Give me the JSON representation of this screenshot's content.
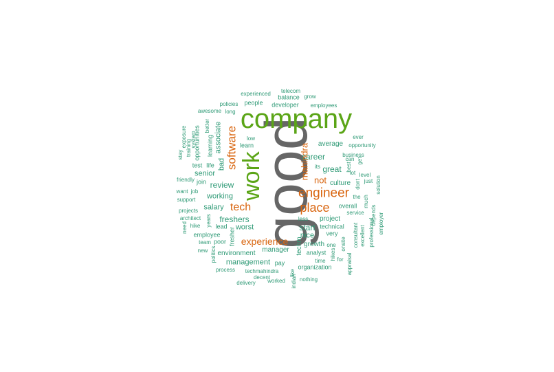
{
  "colors": {
    "gray": "#666666",
    "green": "#5ba517",
    "orange": "#d9650f",
    "teal": "#2f9a76"
  },
  "words": [
    {
      "text": "good",
      "color": "gray"
    },
    {
      "text": "company",
      "color": "green"
    },
    {
      "text": "work",
      "color": "green"
    },
    {
      "text": "engineer",
      "color": "orange"
    },
    {
      "text": "software",
      "color": "orange"
    },
    {
      "text": "place",
      "color": "orange"
    },
    {
      "text": "mahindra",
      "color": "orange"
    },
    {
      "text": "tech",
      "color": "orange"
    },
    {
      "text": "experience",
      "color": "orange"
    },
    {
      "text": "not",
      "color": "orange"
    },
    {
      "text": "career",
      "color": "teal"
    },
    {
      "text": "great",
      "color": "teal"
    },
    {
      "text": "review",
      "color": "teal"
    },
    {
      "text": "freshers",
      "color": "teal"
    },
    {
      "text": "associate",
      "color": "teal"
    },
    {
      "text": "bad",
      "color": "teal"
    },
    {
      "text": "working",
      "color": "teal"
    },
    {
      "text": "salary",
      "color": "teal"
    },
    {
      "text": "worst",
      "color": "teal"
    },
    {
      "text": "start",
      "color": "teal"
    },
    {
      "text": "nice",
      "color": "teal"
    },
    {
      "text": "management",
      "color": "teal"
    },
    {
      "text": "manager",
      "color": "teal"
    },
    {
      "text": "senior",
      "color": "teal"
    },
    {
      "text": "culture",
      "color": "teal"
    },
    {
      "text": "average",
      "color": "teal"
    },
    {
      "text": "project",
      "color": "teal"
    },
    {
      "text": "growth",
      "color": "teal"
    },
    {
      "text": "environment",
      "color": "teal"
    },
    {
      "text": "techm",
      "color": "teal"
    },
    {
      "text": "learn",
      "color": "teal"
    },
    {
      "text": "learning",
      "color": "teal"
    },
    {
      "text": "opportunities",
      "color": "teal"
    },
    {
      "text": "better",
      "color": "teal"
    },
    {
      "text": "life",
      "color": "teal"
    },
    {
      "text": "test",
      "color": "teal"
    },
    {
      "text": "join",
      "color": "teal"
    },
    {
      "text": "lead",
      "color": "teal"
    },
    {
      "text": "poor",
      "color": "teal"
    },
    {
      "text": "fresher",
      "color": "teal"
    },
    {
      "text": "pay",
      "color": "teal"
    },
    {
      "text": "analyst",
      "color": "teal"
    },
    {
      "text": "organization",
      "color": "teal"
    },
    {
      "text": "overall",
      "color": "teal"
    },
    {
      "text": "technical",
      "color": "teal"
    },
    {
      "text": "very",
      "color": "teal"
    },
    {
      "text": "less",
      "color": "teal"
    },
    {
      "text": "its",
      "color": "teal"
    },
    {
      "text": "service",
      "color": "teal"
    },
    {
      "text": "employee",
      "color": "teal"
    },
    {
      "text": "people",
      "color": "teal"
    },
    {
      "text": "developer",
      "color": "teal"
    },
    {
      "text": "balance",
      "color": "teal"
    },
    {
      "text": "experienced",
      "color": "teal"
    },
    {
      "text": "telecom",
      "color": "teal"
    },
    {
      "text": "grow",
      "color": "teal"
    },
    {
      "text": "employees",
      "color": "teal"
    },
    {
      "text": "policies",
      "color": "teal"
    },
    {
      "text": "awesome",
      "color": "teal"
    },
    {
      "text": "long",
      "color": "teal"
    },
    {
      "text": "low",
      "color": "teal"
    },
    {
      "text": "exposure",
      "color": "teal"
    },
    {
      "text": "system",
      "color": "teal"
    },
    {
      "text": "training",
      "color": "teal"
    },
    {
      "text": "stay",
      "color": "teal"
    },
    {
      "text": "friendly",
      "color": "teal"
    },
    {
      "text": "want",
      "color": "teal"
    },
    {
      "text": "job",
      "color": "teal"
    },
    {
      "text": "support",
      "color": "teal"
    },
    {
      "text": "projects",
      "color": "teal"
    },
    {
      "text": "architect",
      "color": "teal"
    },
    {
      "text": "hike",
      "color": "teal"
    },
    {
      "text": "need",
      "color": "teal"
    },
    {
      "text": "years",
      "color": "teal"
    },
    {
      "text": "team",
      "color": "teal"
    },
    {
      "text": "new",
      "color": "teal"
    },
    {
      "text": "politics",
      "color": "teal"
    },
    {
      "text": "process",
      "color": "teal"
    },
    {
      "text": "techmahindra",
      "color": "teal"
    },
    {
      "text": "decent",
      "color": "teal"
    },
    {
      "text": "delivery",
      "color": "teal"
    },
    {
      "text": "worked",
      "color": "teal"
    },
    {
      "text": "indian",
      "color": "teal"
    },
    {
      "text": "like",
      "color": "teal"
    },
    {
      "text": "nothing",
      "color": "teal"
    },
    {
      "text": "time",
      "color": "teal"
    },
    {
      "text": "hikes",
      "color": "teal"
    },
    {
      "text": "for",
      "color": "teal"
    },
    {
      "text": "one",
      "color": "teal"
    },
    {
      "text": "onsite",
      "color": "teal"
    },
    {
      "text": "appraisal",
      "color": "teal"
    },
    {
      "text": "consultant",
      "color": "teal"
    },
    {
      "text": "excellent",
      "color": "teal"
    },
    {
      "text": "professional",
      "color": "teal"
    },
    {
      "text": "depends",
      "color": "teal"
    },
    {
      "text": "employer",
      "color": "teal"
    },
    {
      "text": "much",
      "color": "teal"
    },
    {
      "text": "the",
      "color": "teal"
    },
    {
      "text": "dont",
      "color": "teal"
    },
    {
      "text": "lot",
      "color": "teal"
    },
    {
      "text": "best",
      "color": "teal"
    },
    {
      "text": "get",
      "color": "teal"
    },
    {
      "text": "can",
      "color": "teal"
    },
    {
      "text": "business",
      "color": "teal"
    },
    {
      "text": "level",
      "color": "teal"
    },
    {
      "text": "just",
      "color": "teal"
    },
    {
      "text": "solution",
      "color": "teal"
    },
    {
      "text": "opportunity",
      "color": "teal"
    },
    {
      "text": "ever",
      "color": "teal"
    }
  ]
}
